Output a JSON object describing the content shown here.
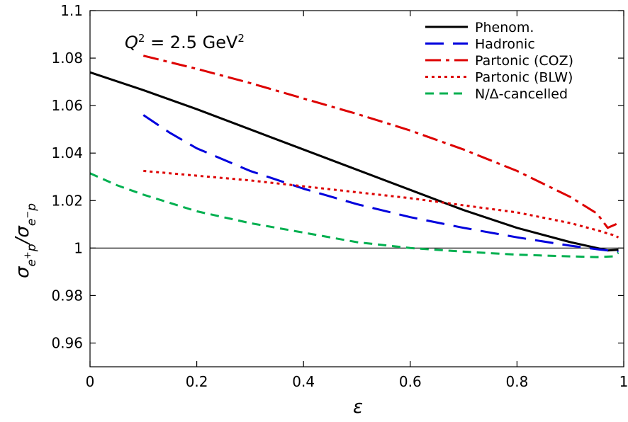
{
  "chart_data": {
    "type": "line",
    "title": "",
    "xlabel": "ε",
    "ylabel": "σe⁺p/σe⁻p",
    "xlim": [
      0,
      1
    ],
    "ylim": [
      0.95,
      1.1
    ],
    "x_ticks": [
      0,
      0.2,
      0.4,
      0.6,
      0.8,
      1
    ],
    "x_tick_labels": [
      "0",
      "0.2",
      "0.4",
      "0.6",
      "0.8",
      "1"
    ],
    "y_ticks": [
      0.96,
      0.98,
      1.0,
      1.02,
      1.04,
      1.06,
      1.08,
      1.1
    ],
    "y_tick_labels": [
      "0.96",
      "0.98",
      "1",
      "1.02",
      "1.04",
      "1.06",
      "1.08",
      "1.1"
    ],
    "annotation": {
      "q": "Q",
      "q_exp": "2",
      "equals_value": " = 2.5 GeV",
      "unit_exp": "2"
    },
    "reference_line": {
      "y": 1.0,
      "color": "#000000"
    },
    "legend_position": "top-right",
    "grid": false,
    "series": [
      {
        "name": "Phenom.",
        "color": "#000000",
        "dash": "solid",
        "x": [
          0.0,
          0.1,
          0.2,
          0.3,
          0.4,
          0.5,
          0.6,
          0.7,
          0.8,
          0.9,
          0.95,
          0.97,
          0.99
        ],
        "y": [
          1.074,
          1.0665,
          1.0585,
          1.05,
          1.0415,
          1.033,
          1.0245,
          1.016,
          1.0085,
          1.0025,
          1.0,
          0.999,
          0.9993
        ]
      },
      {
        "name": "Hadronic",
        "color": "#0000dd",
        "dash": "long-dash",
        "x": [
          0.1,
          0.15,
          0.2,
          0.3,
          0.4,
          0.5,
          0.6,
          0.7,
          0.8,
          0.9,
          0.95,
          0.99
        ],
        "y": [
          1.056,
          1.0485,
          1.042,
          1.0325,
          1.025,
          1.0185,
          1.013,
          1.0085,
          1.0045,
          1.001,
          0.9995,
          0.9985
        ]
      },
      {
        "name": "Partonic (COZ)",
        "color": "#dd0000",
        "dash": "dash-dot",
        "x": [
          0.1,
          0.2,
          0.3,
          0.4,
          0.5,
          0.6,
          0.7,
          0.8,
          0.9,
          0.95,
          0.97,
          0.99
        ],
        "y": [
          1.081,
          1.0755,
          1.0695,
          1.063,
          1.0565,
          1.0495,
          1.0415,
          1.0325,
          1.0215,
          1.0145,
          1.0085,
          1.0105
        ]
      },
      {
        "name": "Partonic (BLW)",
        "color": "#dd0000",
        "dash": "dotted",
        "x": [
          0.1,
          0.2,
          0.3,
          0.4,
          0.5,
          0.6,
          0.7,
          0.8,
          0.9,
          0.95,
          0.98,
          0.99
        ],
        "y": [
          1.0325,
          1.0305,
          1.0285,
          1.026,
          1.0235,
          1.021,
          1.018,
          1.015,
          1.0105,
          1.0075,
          1.0055,
          1.0045
        ]
      },
      {
        "name": "N/Δ-cancelled",
        "color": "#00b050",
        "dash": "short-dash",
        "x": [
          0.0,
          0.05,
          0.1,
          0.2,
          0.3,
          0.4,
          0.5,
          0.6,
          0.7,
          0.8,
          0.9,
          0.95,
          0.98,
          0.99
        ],
        "y": [
          1.0315,
          1.0265,
          1.0225,
          1.0155,
          1.0105,
          1.0065,
          1.0025,
          1.0,
          0.9985,
          0.9972,
          0.9965,
          0.9962,
          0.9965,
          0.998
        ]
      }
    ]
  }
}
